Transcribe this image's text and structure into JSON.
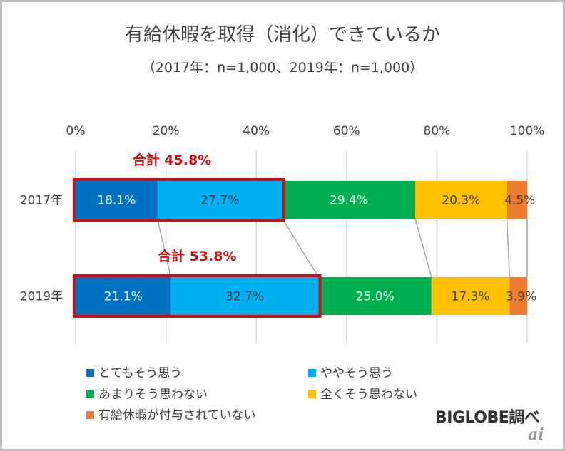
{
  "chart_data": {
    "type": "bar",
    "orientation": "horizontal",
    "stacked": "percent",
    "title": "有給休暇を取得（消化）できているか",
    "subtitle": "（2017年：n=1,000、2019年：n=1,000）",
    "categories": [
      "2017年",
      "2019年"
    ],
    "xlim": [
      0,
      100
    ],
    "x_ticks": [
      "0%",
      "20%",
      "40%",
      "60%",
      "80%",
      "100%"
    ],
    "x_tick_values": [
      0,
      20,
      40,
      60,
      80,
      100
    ],
    "grid": true,
    "legend_position": "bottom",
    "series": [
      {
        "name": "とてもそう思う",
        "color": "#0070c0",
        "label_color": "#e8f4ff",
        "values": [
          18.1,
          21.1
        ],
        "labels": [
          "18.1%",
          "21.1%"
        ]
      },
      {
        "name": "ややそう思う",
        "color": "#00b0f0",
        "label_color": "#404040",
        "values": [
          27.7,
          32.7
        ],
        "labels": [
          "27.7%",
          "32.7%"
        ]
      },
      {
        "name": "あまりそう思わない",
        "color": "#00b050",
        "label_color": "#e6fff0",
        "values": [
          29.4,
          25.0
        ],
        "labels": [
          "29.4%",
          "25.0%"
        ]
      },
      {
        "name": "全くそう思わない",
        "color": "#ffc000",
        "label_color": "#404040",
        "values": [
          20.3,
          17.3
        ],
        "labels": [
          "20.3%",
          "17.3%"
        ]
      },
      {
        "name": "有給休暇が付与されていない",
        "color": "#ed7d31",
        "label_color": "#404040",
        "values": [
          4.5,
          3.9
        ],
        "labels": [
          "4.5%",
          "3.9%"
        ]
      }
    ],
    "annotations": [
      {
        "text": "合計 45.8%",
        "category": "2017年",
        "value": 45.8,
        "color": "#d01010"
      },
      {
        "text": "合計 53.8%",
        "category": "2019年",
        "value": 53.8,
        "color": "#d01010"
      }
    ]
  },
  "source": "BIGLOBE調べ",
  "watermark": "ai"
}
